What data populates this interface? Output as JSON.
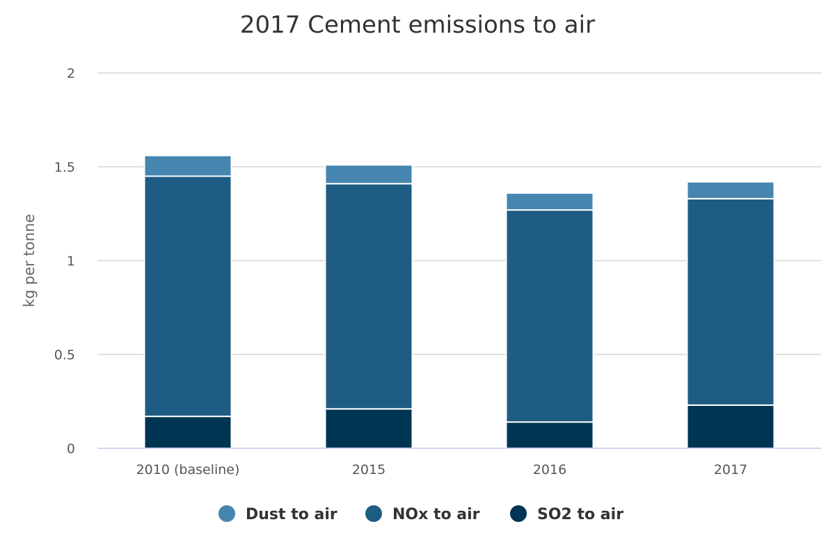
{
  "chart_data": {
    "type": "bar",
    "stacked": true,
    "title": "2017 Cement emissions to air",
    "xlabel": "",
    "ylabel": "kg per tonne",
    "ylim": [
      0,
      2
    ],
    "yticks": [
      "0",
      "0.5",
      "1",
      "1.5",
      "2"
    ],
    "categories": [
      "2010 (baseline)",
      "2015",
      "2016",
      "2017"
    ],
    "series": [
      {
        "name": "SO2 to air",
        "color": "#003453",
        "values": [
          0.17,
          0.21,
          0.14,
          0.23
        ]
      },
      {
        "name": "NOx to air",
        "color": "#1f5c84",
        "values": [
          1.28,
          1.2,
          1.13,
          1.1
        ]
      },
      {
        "name": "Dust to air",
        "color": "#4585b0",
        "values": [
          0.11,
          0.1,
          0.09,
          0.09
        ]
      }
    ],
    "legend_order": [
      "Dust to air",
      "NOx to air",
      "SO2 to air"
    ],
    "legend_position": "bottom-center",
    "grid": true
  }
}
